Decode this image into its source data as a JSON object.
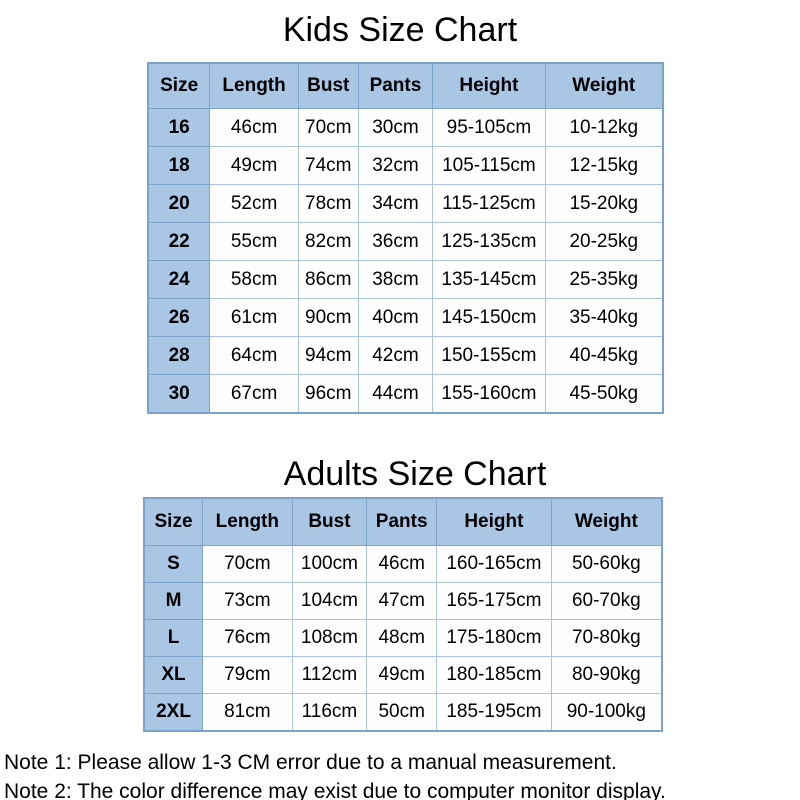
{
  "kids_chart": {
    "title": "Kids Size Chart",
    "columns": [
      "Size",
      "Length",
      "Bust",
      "Pants",
      "Height",
      "Weight"
    ],
    "rows": [
      [
        "16",
        "46cm",
        "70cm",
        "30cm",
        "95-105cm",
        "10-12kg"
      ],
      [
        "18",
        "49cm",
        "74cm",
        "32cm",
        "105-115cm",
        "12-15kg"
      ],
      [
        "20",
        "52cm",
        "78cm",
        "34cm",
        "115-125cm",
        "15-20kg"
      ],
      [
        "22",
        "55cm",
        "82cm",
        "36cm",
        "125-135cm",
        "20-25kg"
      ],
      [
        "24",
        "58cm",
        "86cm",
        "38cm",
        "135-145cm",
        "25-35kg"
      ],
      [
        "26",
        "61cm",
        "90cm",
        "40cm",
        "145-150cm",
        "35-40kg"
      ],
      [
        "28",
        "64cm",
        "94cm",
        "42cm",
        "150-155cm",
        "40-45kg"
      ],
      [
        "30",
        "67cm",
        "96cm",
        "44cm",
        "155-160cm",
        "45-50kg"
      ]
    ]
  },
  "adults_chart": {
    "title": "Adults Size Chart",
    "columns": [
      "Size",
      "Length",
      "Bust",
      "Pants",
      "Height",
      "Weight"
    ],
    "rows": [
      [
        "S",
        "70cm",
        "100cm",
        "46cm",
        "160-165cm",
        "50-60kg"
      ],
      [
        "M",
        "73cm",
        "104cm",
        "47cm",
        "165-175cm",
        "60-70kg"
      ],
      [
        "L",
        "76cm",
        "108cm",
        "48cm",
        "175-180cm",
        "70-80kg"
      ],
      [
        "XL",
        "79cm",
        "112cm",
        "49cm",
        "180-185cm",
        "80-90kg"
      ],
      [
        "2XL",
        "81cm",
        "116cm",
        "50cm",
        "185-195cm",
        "90-100kg"
      ]
    ]
  },
  "notes": [
    "Note 1: Please allow 1-3 CM error due to a manual measurement.",
    "Note 2: The color difference may exist due to computer monitor display."
  ],
  "colors": {
    "header_fill": "#a9c6e5",
    "outer_border": "#7ba2c9",
    "inner_border": "#aac4e0",
    "text": "#000000",
    "background": "#ffffff"
  },
  "chart_data": [
    {
      "type": "table",
      "title": "Kids Size Chart",
      "columns": [
        "Size",
        "Length",
        "Bust",
        "Pants",
        "Height",
        "Weight"
      ],
      "rows": [
        [
          "16",
          "46cm",
          "70cm",
          "30cm",
          "95-105cm",
          "10-12kg"
        ],
        [
          "18",
          "49cm",
          "74cm",
          "32cm",
          "105-115cm",
          "12-15kg"
        ],
        [
          "20",
          "52cm",
          "78cm",
          "34cm",
          "115-125cm",
          "15-20kg"
        ],
        [
          "22",
          "55cm",
          "82cm",
          "36cm",
          "125-135cm",
          "20-25kg"
        ],
        [
          "24",
          "58cm",
          "86cm",
          "38cm",
          "135-145cm",
          "25-35kg"
        ],
        [
          "26",
          "61cm",
          "90cm",
          "40cm",
          "145-150cm",
          "35-40kg"
        ],
        [
          "28",
          "64cm",
          "94cm",
          "42cm",
          "150-155cm",
          "40-45kg"
        ],
        [
          "30",
          "67cm",
          "96cm",
          "44cm",
          "155-160cm",
          "45-50kg"
        ]
      ]
    },
    {
      "type": "table",
      "title": "Adults Size Chart",
      "columns": [
        "Size",
        "Length",
        "Bust",
        "Pants",
        "Height",
        "Weight"
      ],
      "rows": [
        [
          "S",
          "70cm",
          "100cm",
          "46cm",
          "160-165cm",
          "50-60kg"
        ],
        [
          "M",
          "73cm",
          "104cm",
          "47cm",
          "165-175cm",
          "60-70kg"
        ],
        [
          "L",
          "76cm",
          "108cm",
          "48cm",
          "175-180cm",
          "70-80kg"
        ],
        [
          "XL",
          "79cm",
          "112cm",
          "49cm",
          "180-185cm",
          "80-90kg"
        ],
        [
          "2XL",
          "81cm",
          "116cm",
          "50cm",
          "185-195cm",
          "90-100kg"
        ]
      ]
    }
  ]
}
